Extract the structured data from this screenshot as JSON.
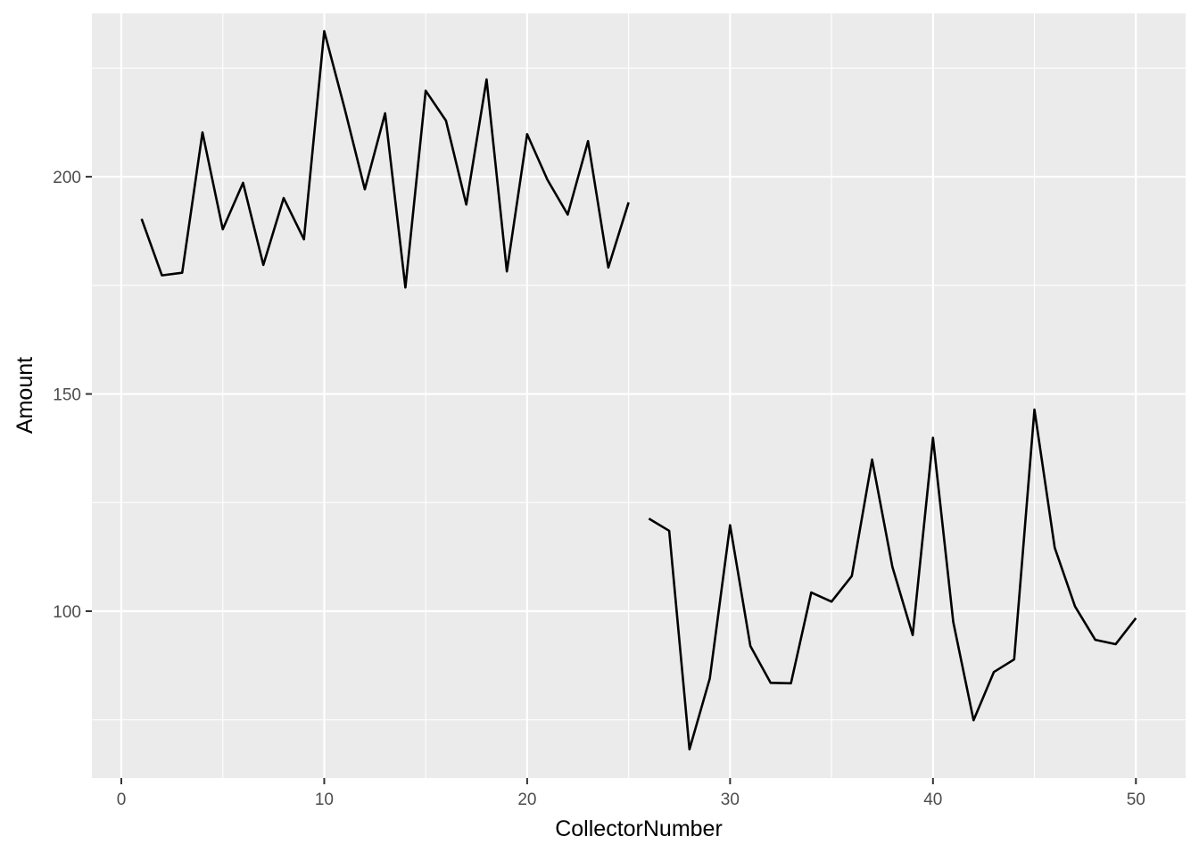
{
  "chart_data": {
    "type": "line",
    "title": "",
    "xlabel": "CollectorNumber",
    "ylabel": "Amount",
    "xlim": [
      -1.45,
      52.45
    ],
    "ylim": [
      61.6,
      237.6
    ],
    "x_ticks": [
      0,
      10,
      20,
      30,
      40,
      50
    ],
    "x_tick_labels": [
      "0",
      "10",
      "20",
      "30",
      "40",
      "50"
    ],
    "y_ticks": [
      100,
      150,
      200
    ],
    "y_tick_labels": [
      "100",
      "150",
      "200"
    ],
    "x_minor_ticks": [
      5,
      15,
      25,
      35,
      45
    ],
    "y_minor_ticks": [
      75,
      125,
      175,
      225
    ],
    "grid": true,
    "legend": "none",
    "colors": {
      "panel_background": "#ebebeb",
      "grid_line": "#ffffff",
      "line": "#000000",
      "tick_text": "#4d4d4d",
      "tick_mark": "#333333"
    },
    "segments": [
      {
        "x": [
          1,
          2,
          3,
          4,
          5,
          6,
          7,
          8,
          9,
          10,
          11,
          12,
          13,
          14,
          15,
          16,
          17,
          18,
          19,
          20,
          21,
          22,
          23,
          24,
          25
        ],
        "y": [
          190.3,
          177.3,
          177.9,
          210.2,
          187.9,
          198.6,
          179.7,
          195.1,
          185.6,
          233.5,
          215.8,
          197.1,
          214.6,
          174.5,
          219.8,
          212.9,
          193.6,
          222.4,
          178.2,
          209.8,
          199.3,
          191.3,
          208.2,
          179.1,
          194.1
        ]
      },
      {
        "x": [
          26,
          27,
          28,
          29,
          30,
          31,
          32,
          33,
          34,
          35,
          36,
          37,
          38,
          39,
          40,
          41,
          42,
          43,
          44,
          45,
          46,
          47,
          48,
          49,
          50
        ],
        "y": [
          121.3,
          118.5,
          68.2,
          84.5,
          119.8,
          92.0,
          83.5,
          83.4,
          104.3,
          102.2,
          108.1,
          134.9,
          110.2,
          94.5,
          139.9,
          97.5,
          74.9,
          86.0,
          88.9,
          146.4,
          114.6,
          101.1,
          93.4,
          92.4,
          98.4
        ]
      }
    ]
  }
}
